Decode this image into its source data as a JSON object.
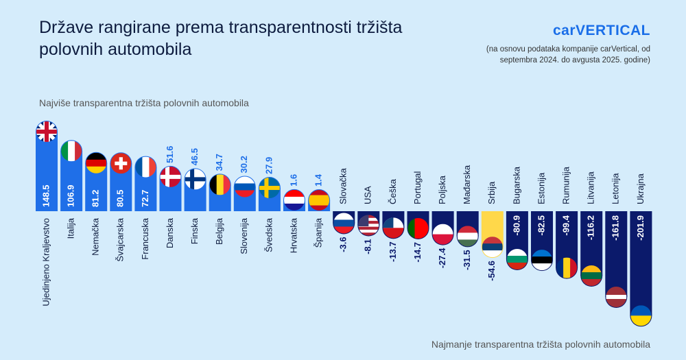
{
  "chart_data": {
    "type": "bar",
    "title": "Države rangirane prema transparentnosti tržišta polovnih automobila",
    "logo": "carVERTICAL",
    "subtitle": "(na osnovu podataka kompanije carVertical, od septembra 2024. do avgusta 2025. godine)",
    "top_label": "Najviše transparentna tržišta polovnih automobila",
    "bottom_label": "Najmanje transparentna tržišta polovnih automobila",
    "categories": [
      "Ujedinjeno Kraljevstvo",
      "Italija",
      "Nemačka",
      "Švajcarska",
      "Francuska",
      "Danska",
      "Finska",
      "Belgija",
      "Slovenija",
      "Švedska",
      "Hrvatska",
      "Španija",
      "Slovačka",
      "USA",
      "Češka",
      "Portugal",
      "Poljska",
      "Mađarska",
      "Srbija",
      "Bugarska",
      "Estonija",
      "Rumunija",
      "Litvanija",
      "Letonija",
      "Ukrajna"
    ],
    "values": [
      148.5,
      106.9,
      81.2,
      80.5,
      72.7,
      51.6,
      46.5,
      34.7,
      30.2,
      27.9,
      1.6,
      1.4,
      -3.6,
      -8.1,
      -13.7,
      -14.7,
      -27.4,
      -31.5,
      -54.6,
      -80.9,
      -82.5,
      -99.4,
      -116.2,
      -161.8,
      -201.9
    ],
    "colors": [
      "#1f6fe8",
      "#1f6fe8",
      "#1f6fe8",
      "#1f6fe8",
      "#1f6fe8",
      "#1f6fe8",
      "#1f6fe8",
      "#1f6fe8",
      "#1f6fe8",
      "#1f6fe8",
      "#1f6fe8",
      "#1f6fe8",
      "#0b1a6b",
      "#0b1a6b",
      "#0b1a6b",
      "#0b1a6b",
      "#0b1a6b",
      "#0b1a6b",
      "#ffd84a",
      "#0b1a6b",
      "#0b1a6b",
      "#0b1a6b",
      "#0b1a6b",
      "#0b1a6b",
      "#0b1a6b"
    ]
  }
}
